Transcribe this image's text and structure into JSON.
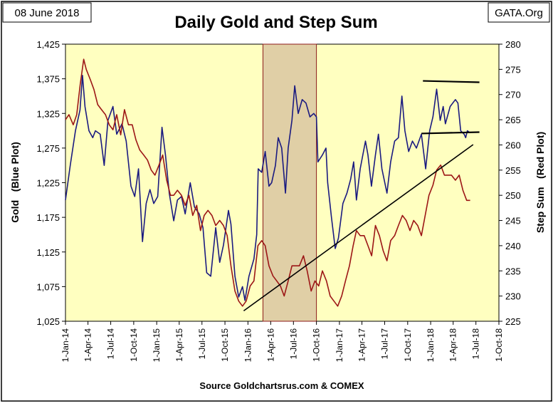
{
  "header": {
    "date_label": "08 June 2018",
    "title": "Daily Gold and Step Sum",
    "credit": "GATA.Org"
  },
  "footer": {
    "source": "Source Goldchartsrus.com & COMEX"
  },
  "colors": {
    "plot_background": "#FFFFC0",
    "gold_series": "#1A1A80",
    "step_sum_series": "#9C1616",
    "highlight_band": "#E0CFA6",
    "highlight_border": "#8B1A1A",
    "trend_lines": "#000000"
  },
  "chart_data": {
    "type": "line",
    "title": "Daily Gold and Step Sum",
    "xlabel": "",
    "ylabel_left": "Gold   (Blue Plot)",
    "ylabel_right": "Step Sum   (Red Plot)",
    "x_domain": [
      "2014-01-01",
      "2018-10-01"
    ],
    "x_tick_labels": [
      "1-Jan-14",
      "1-Apr-14",
      "1-Jul-14",
      "1-Oct-14",
      "1-Jan-15",
      "1-Apr-15",
      "1-Jul-15",
      "1-Oct-15",
      "1-Jan-16",
      "1-Apr-16",
      "1-Jul-16",
      "1-Oct-16",
      "1-Jan-17",
      "1-Apr-17",
      "1-Jul-17",
      "1-Oct-17",
      "1-Jan-18",
      "1-Apr-18",
      "1-Jul-18",
      "1-Oct-18"
    ],
    "x_tick_dates": [
      "2014-01-01",
      "2014-04-01",
      "2014-07-01",
      "2014-10-01",
      "2015-01-01",
      "2015-04-01",
      "2015-07-01",
      "2015-10-01",
      "2016-01-01",
      "2016-04-01",
      "2016-07-01",
      "2016-10-01",
      "2017-01-01",
      "2017-04-01",
      "2017-07-01",
      "2017-10-01",
      "2018-01-01",
      "2018-04-01",
      "2018-07-01",
      "2018-10-01"
    ],
    "y_left_range": [
      1025,
      1425
    ],
    "y_left_ticks": [
      "1,025",
      "1,075",
      "1,125",
      "1,175",
      "1,225",
      "1,275",
      "1,325",
      "1,375",
      "1,425"
    ],
    "y_right_range": [
      225,
      280
    ],
    "y_right_ticks": [
      "225",
      "230",
      "235",
      "240",
      "245",
      "250",
      "255",
      "260",
      "265",
      "270",
      "275",
      "280"
    ],
    "grid": false,
    "shaded_period": {
      "start": "2016-03-01",
      "end": "2016-10-01"
    },
    "series": [
      {
        "axis": "left",
        "points": [
          [
            "2014-01-01",
            1200
          ],
          [
            "2014-01-20",
            1250
          ],
          [
            "2014-02-10",
            1300
          ],
          [
            "2014-02-28",
            1330
          ],
          [
            "2014-03-10",
            1380
          ],
          [
            "2014-03-20",
            1335
          ],
          [
            "2014-04-05",
            1300
          ],
          [
            "2014-04-20",
            1290
          ],
          [
            "2014-05-01",
            1300
          ],
          [
            "2014-05-20",
            1295
          ],
          [
            "2014-06-05",
            1250
          ],
          [
            "2014-06-20",
            1315
          ],
          [
            "2014-07-10",
            1335
          ],
          [
            "2014-07-25",
            1295
          ],
          [
            "2014-08-15",
            1310
          ],
          [
            "2014-09-01",
            1285
          ],
          [
            "2014-09-20",
            1220
          ],
          [
            "2014-10-05",
            1205
          ],
          [
            "2014-10-20",
            1245
          ],
          [
            "2014-11-05",
            1140
          ],
          [
            "2014-11-20",
            1195
          ],
          [
            "2014-12-05",
            1215
          ],
          [
            "2014-12-20",
            1195
          ],
          [
            "2015-01-05",
            1205
          ],
          [
            "2015-01-22",
            1305
          ],
          [
            "2015-02-05",
            1265
          ],
          [
            "2015-02-20",
            1210
          ],
          [
            "2015-03-10",
            1170
          ],
          [
            "2015-03-25",
            1200
          ],
          [
            "2015-04-10",
            1205
          ],
          [
            "2015-04-25",
            1180
          ],
          [
            "2015-05-15",
            1225
          ],
          [
            "2015-06-01",
            1190
          ],
          [
            "2015-06-20",
            1180
          ],
          [
            "2015-07-05",
            1160
          ],
          [
            "2015-07-20",
            1095
          ],
          [
            "2015-08-05",
            1090
          ],
          [
            "2015-08-25",
            1160
          ],
          [
            "2015-09-10",
            1110
          ],
          [
            "2015-09-25",
            1135
          ],
          [
            "2015-10-15",
            1185
          ],
          [
            "2015-10-25",
            1165
          ],
          [
            "2015-11-10",
            1090
          ],
          [
            "2015-11-25",
            1060
          ],
          [
            "2015-12-10",
            1075
          ],
          [
            "2015-12-20",
            1055
          ],
          [
            "2016-01-05",
            1090
          ],
          [
            "2016-01-25",
            1115
          ],
          [
            "2016-02-05",
            1150
          ],
          [
            "2016-02-11",
            1245
          ],
          [
            "2016-02-25",
            1240
          ],
          [
            "2016-03-10",
            1270
          ],
          [
            "2016-03-25",
            1220
          ],
          [
            "2016-04-05",
            1225
          ],
          [
            "2016-04-20",
            1250
          ],
          [
            "2016-05-01",
            1290
          ],
          [
            "2016-05-15",
            1275
          ],
          [
            "2016-05-30",
            1210
          ],
          [
            "2016-06-10",
            1275
          ],
          [
            "2016-06-25",
            1315
          ],
          [
            "2016-07-06",
            1365
          ],
          [
            "2016-07-20",
            1325
          ],
          [
            "2016-08-05",
            1345
          ],
          [
            "2016-08-20",
            1340
          ],
          [
            "2016-09-05",
            1320
          ],
          [
            "2016-09-20",
            1325
          ],
          [
            "2016-10-01",
            1320
          ],
          [
            "2016-10-07",
            1255
          ],
          [
            "2016-10-25",
            1265
          ],
          [
            "2016-11-08",
            1275
          ],
          [
            "2016-11-15",
            1225
          ],
          [
            "2016-11-30",
            1175
          ],
          [
            "2016-12-15",
            1130
          ],
          [
            "2016-12-28",
            1145
          ],
          [
            "2017-01-15",
            1195
          ],
          [
            "2017-01-31",
            1210
          ],
          [
            "2017-02-15",
            1230
          ],
          [
            "2017-02-27",
            1255
          ],
          [
            "2017-03-10",
            1200
          ],
          [
            "2017-03-25",
            1245
          ],
          [
            "2017-04-15",
            1285
          ],
          [
            "2017-04-25",
            1265
          ],
          [
            "2017-05-09",
            1220
          ],
          [
            "2017-05-25",
            1265
          ],
          [
            "2017-06-06",
            1295
          ],
          [
            "2017-06-20",
            1245
          ],
          [
            "2017-07-10",
            1210
          ],
          [
            "2017-07-25",
            1255
          ],
          [
            "2017-08-10",
            1285
          ],
          [
            "2017-08-25",
            1290
          ],
          [
            "2017-09-08",
            1350
          ],
          [
            "2017-09-20",
            1300
          ],
          [
            "2017-10-05",
            1270
          ],
          [
            "2017-10-20",
            1285
          ],
          [
            "2017-11-05",
            1275
          ],
          [
            "2017-11-25",
            1295
          ],
          [
            "2017-12-12",
            1245
          ],
          [
            "2017-12-28",
            1300
          ],
          [
            "2018-01-10",
            1320
          ],
          [
            "2018-01-25",
            1360
          ],
          [
            "2018-02-08",
            1315
          ],
          [
            "2018-02-20",
            1335
          ],
          [
            "2018-03-01",
            1310
          ],
          [
            "2018-03-20",
            1335
          ],
          [
            "2018-04-10",
            1345
          ],
          [
            "2018-04-20",
            1340
          ],
          [
            "2018-05-01",
            1300
          ],
          [
            "2018-05-15",
            1295
          ],
          [
            "2018-05-21",
            1290
          ],
          [
            "2018-05-28",
            1300
          ],
          [
            "2018-06-08",
            1297
          ]
        ]
      },
      {
        "axis": "right",
        "points": [
          [
            "2014-01-01",
            265
          ],
          [
            "2014-01-15",
            266
          ],
          [
            "2014-02-01",
            264
          ],
          [
            "2014-02-15",
            266
          ],
          [
            "2014-03-01",
            272
          ],
          [
            "2014-03-15",
            277
          ],
          [
            "2014-03-25",
            275
          ],
          [
            "2014-04-10",
            273
          ],
          [
            "2014-04-25",
            271
          ],
          [
            "2014-05-10",
            268
          ],
          [
            "2014-05-25",
            267
          ],
          [
            "2014-06-10",
            266
          ],
          [
            "2014-06-25",
            264
          ],
          [
            "2014-07-10",
            263
          ],
          [
            "2014-07-25",
            266
          ],
          [
            "2014-08-10",
            262
          ],
          [
            "2014-08-25",
            267
          ],
          [
            "2014-09-10",
            264
          ],
          [
            "2014-09-25",
            264
          ],
          [
            "2014-10-10",
            261
          ],
          [
            "2014-10-25",
            259
          ],
          [
            "2014-11-10",
            258
          ],
          [
            "2014-11-25",
            257
          ],
          [
            "2014-12-10",
            255
          ],
          [
            "2014-12-25",
            254
          ],
          [
            "2015-01-10",
            256
          ],
          [
            "2015-01-25",
            258
          ],
          [
            "2015-02-10",
            253
          ],
          [
            "2015-02-25",
            250
          ],
          [
            "2015-03-10",
            250
          ],
          [
            "2015-03-25",
            251
          ],
          [
            "2015-04-10",
            250
          ],
          [
            "2015-04-25",
            248
          ],
          [
            "2015-05-10",
            250
          ],
          [
            "2015-05-25",
            246
          ],
          [
            "2015-06-10",
            248
          ],
          [
            "2015-06-25",
            243
          ],
          [
            "2015-07-10",
            246
          ],
          [
            "2015-07-25",
            247
          ],
          [
            "2015-08-10",
            246
          ],
          [
            "2015-08-25",
            244
          ],
          [
            "2015-09-10",
            245
          ],
          [
            "2015-09-25",
            244
          ],
          [
            "2015-10-10",
            242
          ],
          [
            "2015-10-25",
            236
          ],
          [
            "2015-11-10",
            231
          ],
          [
            "2015-11-25",
            229
          ],
          [
            "2015-12-10",
            228
          ],
          [
            "2015-12-25",
            229
          ],
          [
            "2016-01-10",
            232
          ],
          [
            "2016-01-25",
            233
          ],
          [
            "2016-02-10",
            240
          ],
          [
            "2016-02-25",
            241
          ],
          [
            "2016-03-10",
            240
          ],
          [
            "2016-03-25",
            236
          ],
          [
            "2016-04-10",
            234
          ],
          [
            "2016-04-25",
            233
          ],
          [
            "2016-05-10",
            232
          ],
          [
            "2016-05-25",
            230
          ],
          [
            "2016-06-10",
            233
          ],
          [
            "2016-06-25",
            236
          ],
          [
            "2016-07-10",
            236
          ],
          [
            "2016-07-25",
            236
          ],
          [
            "2016-08-10",
            238
          ],
          [
            "2016-08-25",
            235
          ],
          [
            "2016-09-10",
            231
          ],
          [
            "2016-09-25",
            233
          ],
          [
            "2016-10-10",
            232
          ],
          [
            "2016-10-25",
            235
          ],
          [
            "2016-11-10",
            233
          ],
          [
            "2016-11-25",
            230
          ],
          [
            "2016-12-10",
            229
          ],
          [
            "2016-12-25",
            228
          ],
          [
            "2017-01-10",
            230
          ],
          [
            "2017-01-25",
            233
          ],
          [
            "2017-02-10",
            236
          ],
          [
            "2017-02-25",
            240
          ],
          [
            "2017-03-10",
            243
          ],
          [
            "2017-03-25",
            242
          ],
          [
            "2017-04-10",
            242
          ],
          [
            "2017-04-25",
            240
          ],
          [
            "2017-05-10",
            238
          ],
          [
            "2017-05-25",
            244
          ],
          [
            "2017-06-10",
            242
          ],
          [
            "2017-06-25",
            239
          ],
          [
            "2017-07-10",
            237
          ],
          [
            "2017-07-25",
            241
          ],
          [
            "2017-08-10",
            242
          ],
          [
            "2017-08-25",
            244
          ],
          [
            "2017-09-10",
            246
          ],
          [
            "2017-09-25",
            245
          ],
          [
            "2017-10-10",
            243
          ],
          [
            "2017-10-25",
            245
          ],
          [
            "2017-11-10",
            244
          ],
          [
            "2017-11-25",
            242
          ],
          [
            "2017-12-10",
            246
          ],
          [
            "2017-12-25",
            250
          ],
          [
            "2018-01-10",
            252
          ],
          [
            "2018-01-25",
            255
          ],
          [
            "2018-02-10",
            256
          ],
          [
            "2018-02-25",
            254
          ],
          [
            "2018-03-10",
            254
          ],
          [
            "2018-03-25",
            254
          ],
          [
            "2018-04-10",
            253
          ],
          [
            "2018-04-25",
            254
          ],
          [
            "2018-05-10",
            251
          ],
          [
            "2018-05-25",
            249
          ],
          [
            "2018-06-08",
            249
          ]
        ]
      }
    ],
    "annotations": [
      {
        "kind": "trend_line",
        "from": [
          "2015-12-15",
          1040
        ],
        "to": [
          "2018-06-20",
          1280
        ]
      },
      {
        "kind": "resistance_line",
        "from": [
          "2017-12-01",
          1372
        ],
        "to": [
          "2018-07-15",
          1370
        ]
      },
      {
        "kind": "support_line",
        "from": [
          "2017-11-25",
          1296
        ],
        "to": [
          "2018-07-15",
          1298
        ]
      }
    ]
  }
}
